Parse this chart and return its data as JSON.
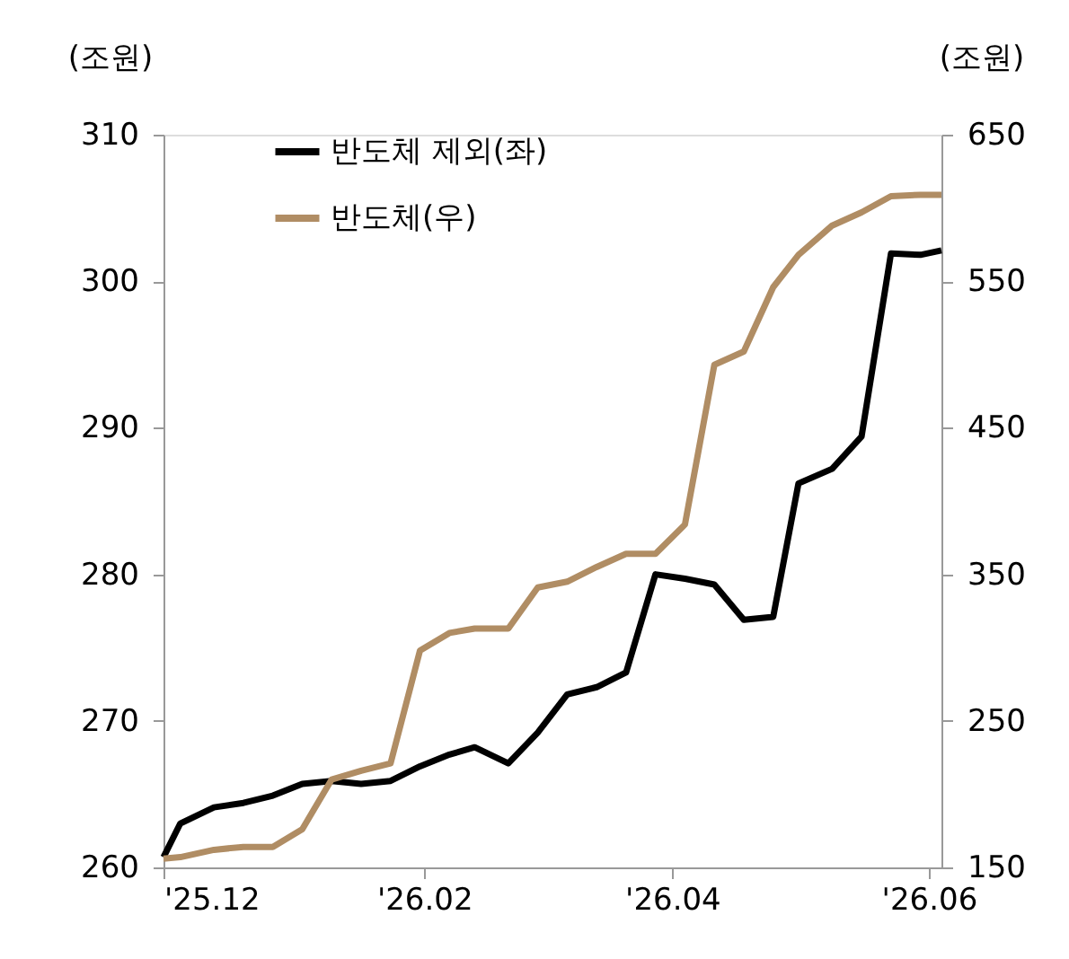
{
  "chart_data": {
    "type": "line",
    "ylabel": "(조원)",
    "y2label": "(조원)",
    "x": [
      "2025-12-01",
      "2025-12-05",
      "2025-12-13",
      "2025-12-20",
      "2025-12-27",
      "2026-01-03",
      "2026-01-10",
      "2026-01-17",
      "2026-01-24",
      "2026-01-31",
      "2026-02-07",
      "2026-02-13",
      "2026-02-21",
      "2026-02-28",
      "2026-03-07",
      "2026-03-14",
      "2026-03-21",
      "2026-03-28",
      "2026-04-04",
      "2026-04-11",
      "2026-04-18",
      "2026-04-25",
      "2026-05-01",
      "2026-05-09",
      "2026-05-16",
      "2026-05-23",
      "2026-05-30",
      "2026-06-04"
    ],
    "series": [
      {
        "name": "반도체 제외(좌)",
        "color": "#000000",
        "values": [
          260.7,
          263.0,
          264.1,
          264.4,
          264.9,
          265.7,
          265.9,
          265.7,
          265.9,
          266.9,
          267.7,
          268.2,
          267.1,
          269.2,
          271.8,
          272.3,
          273.3,
          280.0,
          279.7,
          279.3,
          276.9,
          277.1,
          286.2,
          287.2,
          289.4,
          301.9,
          301.8,
          302.1
        ]
      },
      {
        "name": "반도체(우)",
        "color": "#b08d64",
        "axis": "y2",
        "values": [
          156,
          157,
          162,
          164,
          164,
          176,
          210,
          216,
          221,
          298,
          310,
          313,
          313,
          341,
          345,
          355,
          364,
          364,
          384,
          493,
          502,
          546,
          568,
          588,
          597,
          608,
          609,
          609
        ]
      }
    ],
    "xlim": [
      "2025-12-01",
      "2026-06-04"
    ],
    "xticks": [
      {
        "value": "2025-12-01",
        "label": "'25.12"
      },
      {
        "value": "2026-02-01",
        "label": "'26.02"
      },
      {
        "value": "2026-04-01",
        "label": "'26.04"
      },
      {
        "value": "2026-06-01",
        "label": "'26.06"
      }
    ],
    "ylim": [
      260,
      310
    ],
    "yticks": [
      260,
      270,
      280,
      290,
      300,
      310
    ],
    "y2lim": [
      150,
      650
    ],
    "y2ticks": [
      150,
      250,
      350,
      450,
      550,
      650
    ],
    "legend": "top left"
  }
}
